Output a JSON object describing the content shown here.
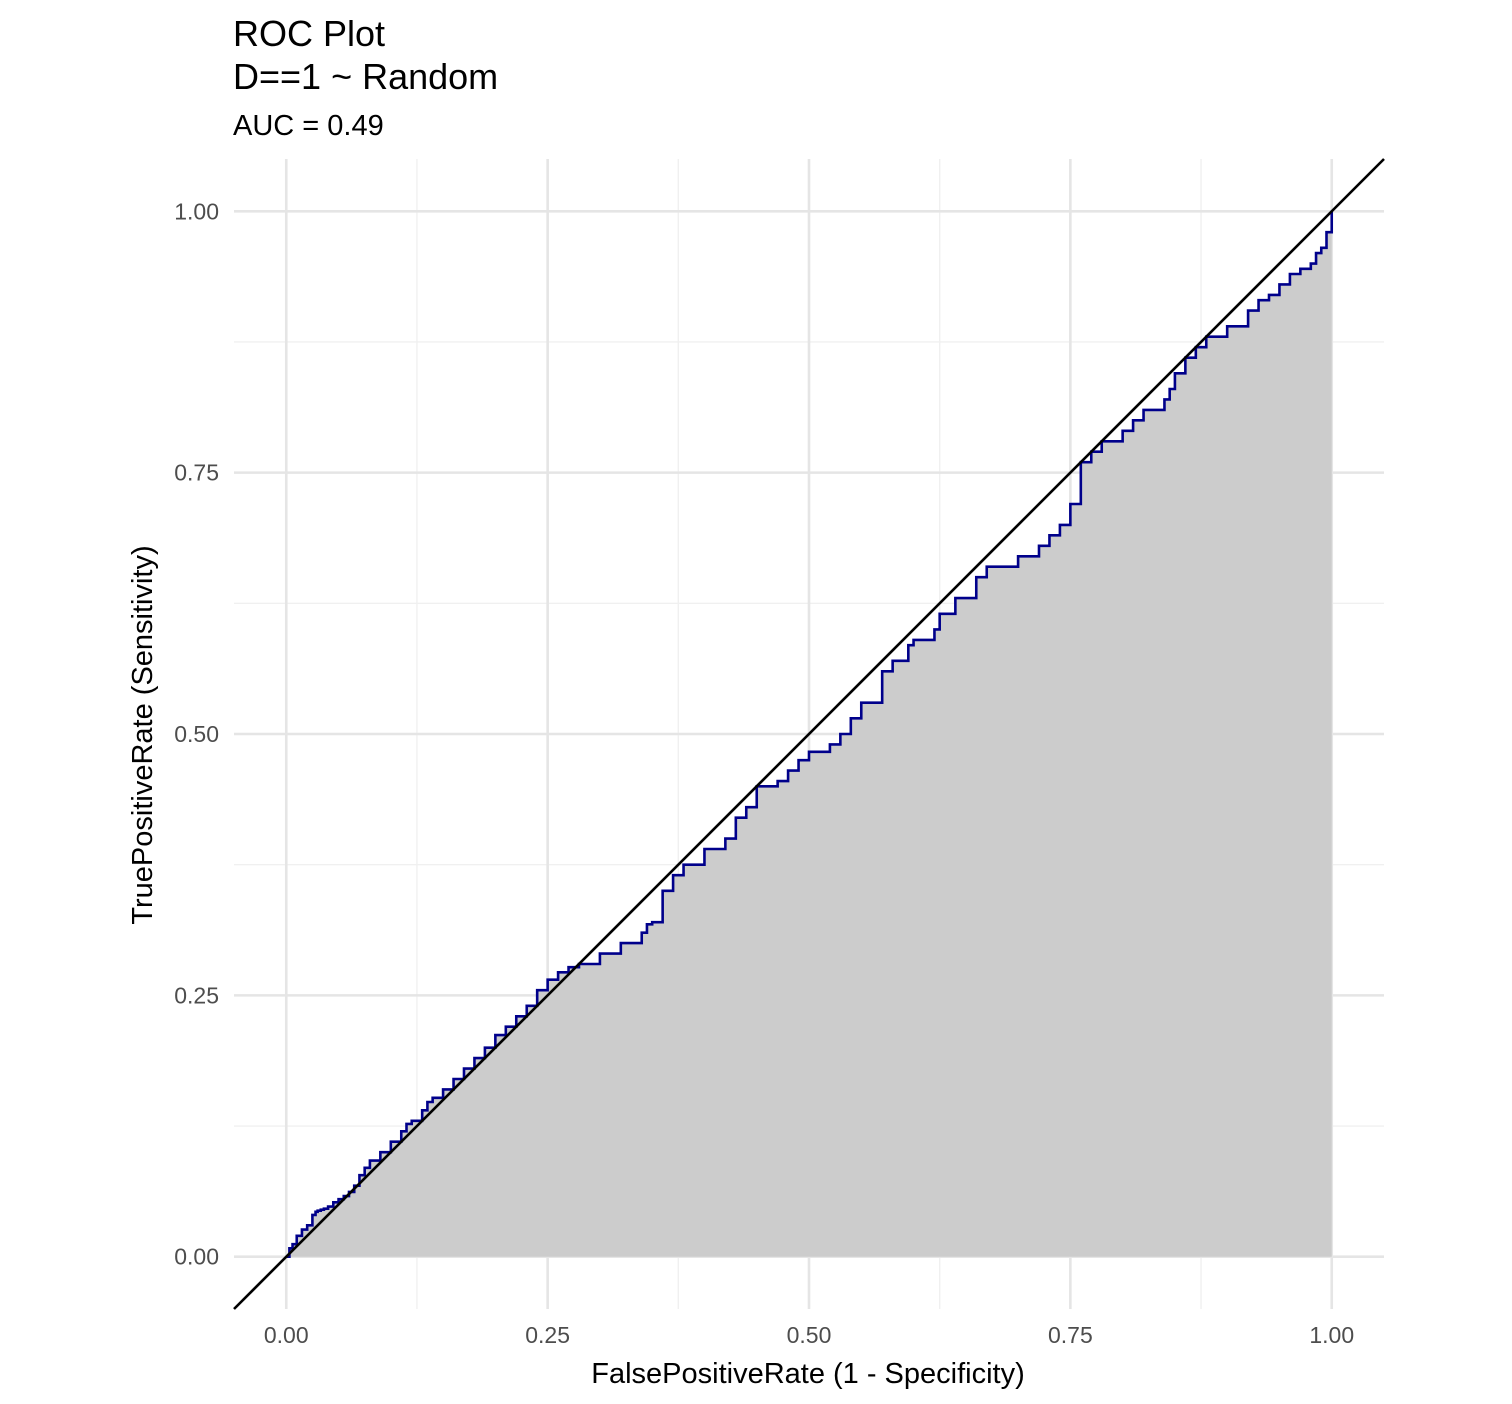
{
  "chart_data": {
    "type": "line",
    "title_lines": [
      "ROC Plot",
      "D==1 ~ Random"
    ],
    "subtitle": "AUC = 0.49",
    "xlabel": "FalsePositiveRate (1 - Specificity)",
    "ylabel": "TruePositiveRate (Sensitivity)",
    "xlim": [
      -0.05,
      1.05
    ],
    "ylim": [
      -0.05,
      1.05
    ],
    "x_ticks": [
      0,
      0.25,
      0.5,
      0.75,
      1
    ],
    "y_ticks": [
      0,
      0.25,
      0.5,
      0.75,
      1
    ],
    "x_tick_labels": [
      "0.00",
      "0.25",
      "0.50",
      "0.75",
      "1.00"
    ],
    "y_tick_labels": [
      "0.00",
      "0.25",
      "0.50",
      "0.75",
      "1.00"
    ],
    "grid": true,
    "legend": "none",
    "colors": {
      "roc_line": "#00008b",
      "area_fill": "#cccccc",
      "reference_line": "#000000",
      "grid_major": "#e5e5e5",
      "grid_minor": "#f0f0f0",
      "tick_text": "#4d4d4d"
    },
    "reference_line": {
      "intercept": 0,
      "slope": 1
    },
    "series": [
      {
        "fill_under": true,
        "x": [
          0.0,
          0.003,
          0.006,
          0.01,
          0.015,
          0.02,
          0.025,
          0.028,
          0.03,
          0.033,
          0.036,
          0.04,
          0.045,
          0.05,
          0.055,
          0.06,
          0.065,
          0.07,
          0.075,
          0.08,
          0.09,
          0.1,
          0.11,
          0.115,
          0.12,
          0.13,
          0.135,
          0.14,
          0.15,
          0.16,
          0.17,
          0.18,
          0.19,
          0.2,
          0.21,
          0.22,
          0.23,
          0.24,
          0.25,
          0.26,
          0.27,
          0.28,
          0.3,
          0.32,
          0.34,
          0.345,
          0.35,
          0.36,
          0.37,
          0.38,
          0.4,
          0.42,
          0.43,
          0.44,
          0.45,
          0.47,
          0.48,
          0.49,
          0.5,
          0.52,
          0.53,
          0.54,
          0.55,
          0.57,
          0.58,
          0.595,
          0.6,
          0.62,
          0.625,
          0.64,
          0.66,
          0.67,
          0.7,
          0.72,
          0.73,
          0.74,
          0.75,
          0.76,
          0.77,
          0.78,
          0.8,
          0.81,
          0.82,
          0.84,
          0.845,
          0.85,
          0.86,
          0.87,
          0.88,
          0.9,
          0.92,
          0.93,
          0.94,
          0.95,
          0.96,
          0.97,
          0.98,
          0.985,
          0.99,
          0.995,
          1.0,
          1.0
        ],
        "y": [
          0.0,
          0.008,
          0.012,
          0.02,
          0.026,
          0.03,
          0.04,
          0.043,
          0.044,
          0.045,
          0.046,
          0.048,
          0.052,
          0.055,
          0.058,
          0.062,
          0.068,
          0.078,
          0.085,
          0.092,
          0.1,
          0.11,
          0.12,
          0.127,
          0.13,
          0.14,
          0.148,
          0.152,
          0.16,
          0.17,
          0.18,
          0.19,
          0.2,
          0.212,
          0.22,
          0.23,
          0.24,
          0.255,
          0.265,
          0.272,
          0.277,
          0.28,
          0.29,
          0.3,
          0.31,
          0.318,
          0.32,
          0.35,
          0.365,
          0.375,
          0.39,
          0.4,
          0.42,
          0.43,
          0.45,
          0.455,
          0.465,
          0.475,
          0.483,
          0.49,
          0.5,
          0.515,
          0.53,
          0.56,
          0.57,
          0.585,
          0.59,
          0.6,
          0.615,
          0.63,
          0.65,
          0.66,
          0.67,
          0.68,
          0.69,
          0.7,
          0.72,
          0.76,
          0.77,
          0.78,
          0.79,
          0.8,
          0.81,
          0.82,
          0.83,
          0.845,
          0.86,
          0.87,
          0.88,
          0.89,
          0.905,
          0.915,
          0.92,
          0.93,
          0.94,
          0.945,
          0.95,
          0.96,
          0.965,
          0.98,
          0.99,
          1.0
        ]
      }
    ]
  }
}
